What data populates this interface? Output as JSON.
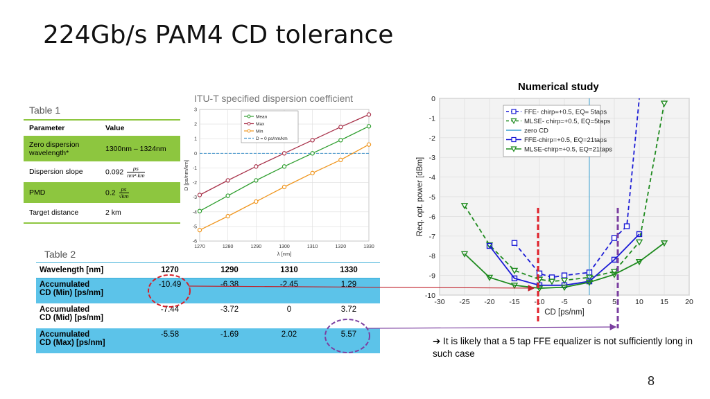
{
  "title": "224Gb/s PAM4 CD tolerance",
  "table1": {
    "caption": "Table 1",
    "headers": [
      "Parameter",
      "Value"
    ],
    "rows": [
      {
        "param": "Zero dispersion wavelength*",
        "value": "1300nm – 1324nm",
        "highlight": true
      },
      {
        "param": "Dispersion slope",
        "value": "0.092",
        "unit_num": "ps",
        "unit_den": "nm²·km",
        "highlight": false
      },
      {
        "param": "PMD",
        "value": "0.2",
        "unit_num": "ps",
        "unit_den": "√km",
        "highlight": true
      },
      {
        "param": "Target distance",
        "value": "2 km",
        "highlight": false
      }
    ],
    "highlight_color": "#8dc63f"
  },
  "table2": {
    "caption": "Table 2",
    "headers": [
      "Wavelength [nm]",
      "1270",
      "1290",
      "1310",
      "1330"
    ],
    "rows": [
      {
        "label_line1": "Accumulated",
        "label_line2": "CD (Min) [ps/nm]",
        "values": [
          "-10.49",
          "-6.38",
          "-2.45",
          "1.29"
        ],
        "highlight": true
      },
      {
        "label_line1": "Accumulated",
        "label_line2": "CD (Mid) [ps/nm]",
        "values": [
          "-7.44",
          "-3.72",
          "0",
          "3.72"
        ],
        "highlight": false
      },
      {
        "label_line1": "Accumulated",
        "label_line2": "CD (Max) [ps/nm]",
        "values": [
          "-5.58",
          "-1.69",
          "2.02",
          "5.57"
        ],
        "highlight": true
      }
    ],
    "highlight_color": "#5cc3e9"
  },
  "numerical_study_title": "Numerical study",
  "conclusion": "➔ It is likely that a 5 tap FFE equalizer is not sufficiently long in such case",
  "page_number": "8",
  "chart_data": [
    {
      "type": "line",
      "title": "ITU-T specified dispersion coefficient",
      "xlabel": "λ [nm]",
      "ylabel": "D [ps/nm/km]",
      "xlim": [
        1270,
        1330
      ],
      "ylim": [
        -6,
        3
      ],
      "xticks": [
        "1270",
        "1280",
        "1290",
        "1300",
        "1310",
        "1320",
        "1330"
      ],
      "yticks": [
        "-6",
        "-5",
        "-4",
        "-3",
        "-2",
        "-1",
        "0",
        "1",
        "2",
        "3"
      ],
      "grid": true,
      "legend_position": "top-left",
      "x": [
        1270,
        1280,
        1290,
        1300,
        1310,
        1320,
        1330
      ],
      "series": [
        {
          "name": "Mean",
          "color": "#2e9e2e",
          "values": [
            -3.95,
            -2.9,
            -1.85,
            -0.9,
            0.0,
            0.9,
            1.85
          ]
        },
        {
          "name": "Max",
          "color": "#a8324a",
          "values": [
            -2.85,
            -1.85,
            -0.9,
            0.0,
            0.9,
            1.8,
            2.65
          ]
        },
        {
          "name": "Min",
          "color": "#f0961e",
          "values": [
            -5.25,
            -4.3,
            -3.3,
            -2.3,
            -1.35,
            -0.45,
            0.6
          ]
        }
      ],
      "reference_line": {
        "name": "D = 0 ps/nm/km",
        "value": 0,
        "color": "#3a8fc9"
      }
    },
    {
      "type": "line",
      "title": "",
      "xlabel": "CD [ps/nm]",
      "ylabel": "Req. opt. power [dBm]",
      "xlim": [
        -30,
        20
      ],
      "ylim": [
        -10,
        0
      ],
      "xticks": [
        "-30",
        "-25",
        "-20",
        "-15",
        "-10",
        "-5",
        "0",
        "5",
        "10",
        "15",
        "20"
      ],
      "yticks": [
        "0",
        "-1",
        "-2",
        "-3",
        "-4",
        "-5",
        "-6",
        "-7",
        "-8",
        "-9",
        "-10"
      ],
      "grid": true,
      "legend_position": "top-right",
      "series": [
        {
          "name": "FFE- chirp=+0.5, EQ= 5taps",
          "color": "#1a1ad6",
          "dashed": true,
          "marker": "square",
          "x": [
            -15,
            -10,
            -7.5,
            -5,
            0,
            5,
            7.5,
            10
          ],
          "values": [
            -7.35,
            -8.9,
            -9.1,
            -9.0,
            -8.85,
            -7.1,
            -6.5,
            0
          ]
        },
        {
          "name": "MLSE- chirp=+0.5, EQ=5taps",
          "color": "#1e8a1e",
          "dashed": true,
          "marker": "triangle",
          "x": [
            -25,
            -20,
            -15,
            -10,
            -7.5,
            -5,
            0,
            5,
            10,
            15
          ],
          "values": [
            -5.45,
            -7.45,
            -8.75,
            -9.2,
            -9.3,
            -9.25,
            -9.1,
            -8.8,
            -7.3,
            -0.25
          ]
        },
        {
          "name": "zero CD",
          "color": "#3a9fd0",
          "dashed": false,
          "marker": "none",
          "x": [
            0,
            0
          ],
          "values": [
            0,
            -10
          ]
        },
        {
          "name": "FFE-chirp=+0.5, EQ=21taps",
          "color": "#1a1ad6",
          "dashed": false,
          "marker": "square",
          "x": [
            -20,
            -15,
            -10,
            -5,
            0,
            5,
            10
          ],
          "values": [
            -7.5,
            -9.15,
            -9.5,
            -9.5,
            -9.3,
            -8.2,
            -6.9
          ]
        },
        {
          "name": "MLSE-chirp=+0.5, EQ=21taps",
          "color": "#1e8a1e",
          "dashed": false,
          "marker": "triangle",
          "x": [
            -25,
            -20,
            -15,
            -10,
            -5,
            0,
            5,
            10,
            15
          ],
          "values": [
            -7.9,
            -9.1,
            -9.5,
            -9.65,
            -9.6,
            -9.35,
            -8.95,
            -8.3,
            -7.35
          ]
        }
      ]
    }
  ]
}
